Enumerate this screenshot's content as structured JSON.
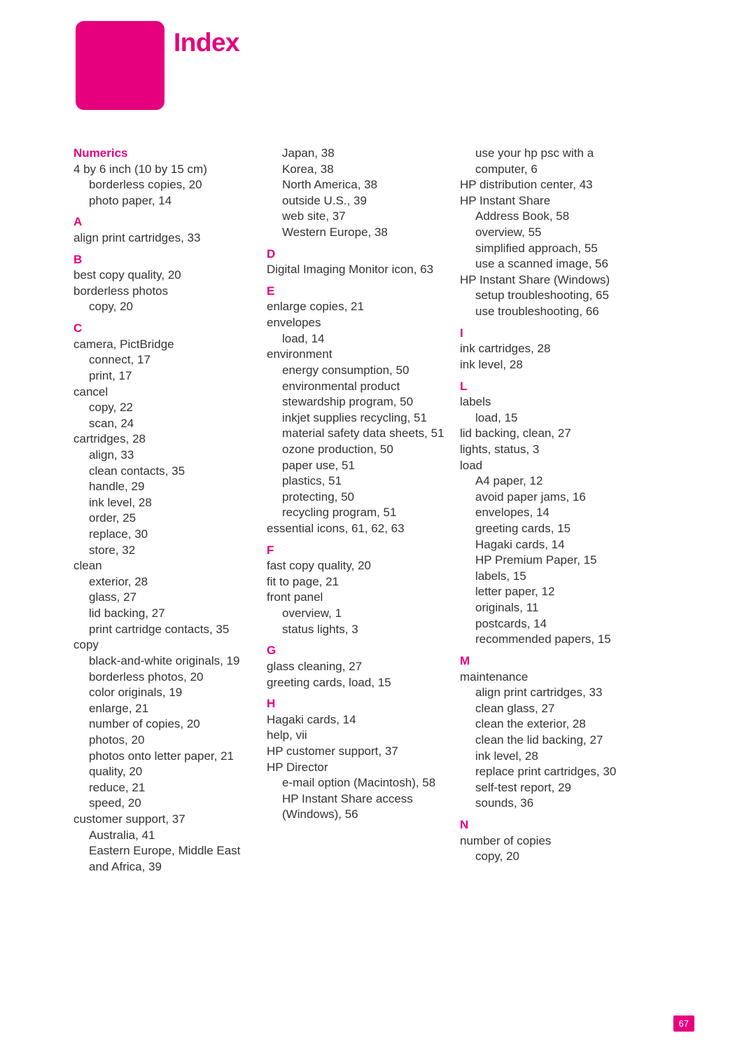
{
  "title": "Index",
  "page_number": "67",
  "accent_color": "#e6007e",
  "columns": [
    [
      {
        "type": "letter",
        "text": "Numerics",
        "first": true
      },
      {
        "type": "entry",
        "text": "4 by 6 inch (10 by 15 cm)"
      },
      {
        "type": "sub1",
        "text": "borderless copies, 20"
      },
      {
        "type": "sub1",
        "text": "photo paper, 14"
      },
      {
        "type": "letter",
        "text": "A"
      },
      {
        "type": "entry",
        "text": "align print cartridges, 33"
      },
      {
        "type": "letter",
        "text": "B"
      },
      {
        "type": "entry",
        "text": "best copy quality, 20"
      },
      {
        "type": "entry",
        "text": "borderless photos"
      },
      {
        "type": "sub1",
        "text": "copy, 20"
      },
      {
        "type": "letter",
        "text": "C"
      },
      {
        "type": "entry",
        "text": "camera, PictBridge"
      },
      {
        "type": "sub1",
        "text": "connect, 17"
      },
      {
        "type": "sub1",
        "text": "print, 17"
      },
      {
        "type": "entry",
        "text": "cancel"
      },
      {
        "type": "sub1",
        "text": "copy, 22"
      },
      {
        "type": "sub1",
        "text": "scan, 24"
      },
      {
        "type": "entry",
        "text": "cartridges, 28"
      },
      {
        "type": "sub1",
        "text": "align, 33"
      },
      {
        "type": "sub1",
        "text": "clean contacts, 35"
      },
      {
        "type": "sub1",
        "text": "handle, 29"
      },
      {
        "type": "sub1",
        "text": "ink level, 28"
      },
      {
        "type": "sub1",
        "text": "order, 25"
      },
      {
        "type": "sub1",
        "text": "replace, 30"
      },
      {
        "type": "sub1",
        "text": "store, 32"
      },
      {
        "type": "entry",
        "text": "clean"
      },
      {
        "type": "sub1",
        "text": "exterior, 28"
      },
      {
        "type": "sub1",
        "text": "glass, 27"
      },
      {
        "type": "sub1",
        "text": "lid backing, 27"
      },
      {
        "type": "sub1",
        "text": "print cartridge contacts, 35"
      },
      {
        "type": "entry",
        "text": "copy"
      },
      {
        "type": "sub1",
        "text": "black-and-white originals, 19"
      },
      {
        "type": "sub1",
        "text": "borderless photos, 20"
      },
      {
        "type": "sub1",
        "text": "color originals, 19"
      },
      {
        "type": "sub1",
        "text": "enlarge, 21"
      },
      {
        "type": "sub1",
        "text": "number of copies, 20"
      },
      {
        "type": "sub1",
        "text": "photos, 20"
      },
      {
        "type": "sub1",
        "text": "photos onto letter paper, 21"
      },
      {
        "type": "sub1",
        "text": "quality, 20"
      },
      {
        "type": "sub1",
        "text": "reduce, 21"
      },
      {
        "type": "sub1",
        "text": "speed, 20"
      },
      {
        "type": "entry",
        "text": "customer support, 37"
      },
      {
        "type": "sub1",
        "text": "Australia, 41"
      },
      {
        "type": "sub1",
        "text": "Eastern Europe, Middle East and Africa, 39"
      }
    ],
    [
      {
        "type": "sub1",
        "text": "Japan, 38"
      },
      {
        "type": "sub1",
        "text": "Korea, 38"
      },
      {
        "type": "sub1",
        "text": "North America, 38"
      },
      {
        "type": "sub1",
        "text": "outside U.S., 39"
      },
      {
        "type": "sub1",
        "text": "web site, 37"
      },
      {
        "type": "sub1",
        "text": "Western Europe, 38"
      },
      {
        "type": "letter",
        "text": "D"
      },
      {
        "type": "entry",
        "text": "Digital Imaging Monitor icon, 63"
      },
      {
        "type": "letter",
        "text": "E"
      },
      {
        "type": "entry",
        "text": "enlarge copies, 21"
      },
      {
        "type": "entry",
        "text": "envelopes"
      },
      {
        "type": "sub1",
        "text": "load, 14"
      },
      {
        "type": "entry",
        "text": "environment"
      },
      {
        "type": "sub1",
        "text": "energy consumption, 50"
      },
      {
        "type": "sub1",
        "text": "environmental product stewardship program, 50"
      },
      {
        "type": "sub1",
        "text": "inkjet supplies recycling, 51"
      },
      {
        "type": "sub1",
        "text": "material safety data sheets, 51"
      },
      {
        "type": "sub1",
        "text": "ozone production, 50"
      },
      {
        "type": "sub1",
        "text": "paper use, 51"
      },
      {
        "type": "sub1",
        "text": "plastics, 51"
      },
      {
        "type": "sub1",
        "text": "protecting, 50"
      },
      {
        "type": "sub1",
        "text": "recycling program, 51"
      },
      {
        "type": "entry",
        "text": "essential icons, 61, 62, 63"
      },
      {
        "type": "letter",
        "text": "F"
      },
      {
        "type": "entry",
        "text": "fast copy quality, 20"
      },
      {
        "type": "entry",
        "text": "fit to page, 21"
      },
      {
        "type": "entry",
        "text": "front panel"
      },
      {
        "type": "sub1",
        "text": "overview, 1"
      },
      {
        "type": "sub1",
        "text": "status lights, 3"
      },
      {
        "type": "letter",
        "text": "G"
      },
      {
        "type": "entry",
        "text": "glass cleaning, 27"
      },
      {
        "type": "entry",
        "text": "greeting cards, load, 15"
      },
      {
        "type": "letter",
        "text": "H"
      },
      {
        "type": "entry",
        "text": "Hagaki cards, 14"
      },
      {
        "type": "entry",
        "text": "help, vii"
      },
      {
        "type": "entry",
        "text": "HP customer support, 37"
      },
      {
        "type": "entry",
        "text": "HP Director"
      },
      {
        "type": "sub1",
        "text": "e-mail option (Macintosh), 58"
      },
      {
        "type": "sub1",
        "text": "HP Instant Share access (Windows), 56"
      }
    ],
    [
      {
        "type": "sub1",
        "text": "use your hp psc with a computer, 6"
      },
      {
        "type": "entry",
        "text": "HP distribution center, 43"
      },
      {
        "type": "entry",
        "text": "HP Instant Share"
      },
      {
        "type": "sub1",
        "text": "Address Book, 58"
      },
      {
        "type": "sub1",
        "text": "overview, 55"
      },
      {
        "type": "sub1",
        "text": "simplified approach, 55"
      },
      {
        "type": "sub1",
        "text": "use a scanned image, 56"
      },
      {
        "type": "entry",
        "text": "HP Instant Share (Windows)"
      },
      {
        "type": "sub1",
        "text": "setup troubleshooting, 65"
      },
      {
        "type": "sub1",
        "text": "use troubleshooting, 66"
      },
      {
        "type": "letter",
        "text": "I"
      },
      {
        "type": "entry",
        "text": "ink cartridges, 28"
      },
      {
        "type": "entry",
        "text": "ink level, 28"
      },
      {
        "type": "letter",
        "text": "L"
      },
      {
        "type": "entry",
        "text": "labels"
      },
      {
        "type": "sub1",
        "text": "load, 15"
      },
      {
        "type": "entry",
        "text": "lid backing, clean, 27"
      },
      {
        "type": "entry",
        "text": "lights, status, 3"
      },
      {
        "type": "entry",
        "text": "load"
      },
      {
        "type": "sub1",
        "text": "A4 paper, 12"
      },
      {
        "type": "sub1",
        "text": "avoid paper jams, 16"
      },
      {
        "type": "sub1",
        "text": "envelopes, 14"
      },
      {
        "type": "sub1",
        "text": "greeting cards, 15"
      },
      {
        "type": "sub1",
        "text": "Hagaki cards, 14"
      },
      {
        "type": "sub1",
        "text": "HP Premium Paper, 15"
      },
      {
        "type": "sub1",
        "text": "labels, 15"
      },
      {
        "type": "sub1",
        "text": "letter paper, 12"
      },
      {
        "type": "sub1",
        "text": "originals, 11"
      },
      {
        "type": "sub1",
        "text": "postcards, 14"
      },
      {
        "type": "sub1",
        "text": "recommended papers, 15"
      },
      {
        "type": "letter",
        "text": "M"
      },
      {
        "type": "entry",
        "text": "maintenance"
      },
      {
        "type": "sub1",
        "text": "align print cartridges, 33"
      },
      {
        "type": "sub1",
        "text": "clean glass, 27"
      },
      {
        "type": "sub1",
        "text": "clean the exterior, 28"
      },
      {
        "type": "sub1",
        "text": "clean the lid backing, 27"
      },
      {
        "type": "sub1",
        "text": "ink level, 28"
      },
      {
        "type": "sub1",
        "text": "replace print cartridges, 30"
      },
      {
        "type": "sub1",
        "text": "self-test report, 29"
      },
      {
        "type": "sub1",
        "text": "sounds, 36"
      },
      {
        "type": "letter",
        "text": "N"
      },
      {
        "type": "entry",
        "text": "number of copies"
      },
      {
        "type": "sub1",
        "text": "copy, 20"
      }
    ]
  ]
}
